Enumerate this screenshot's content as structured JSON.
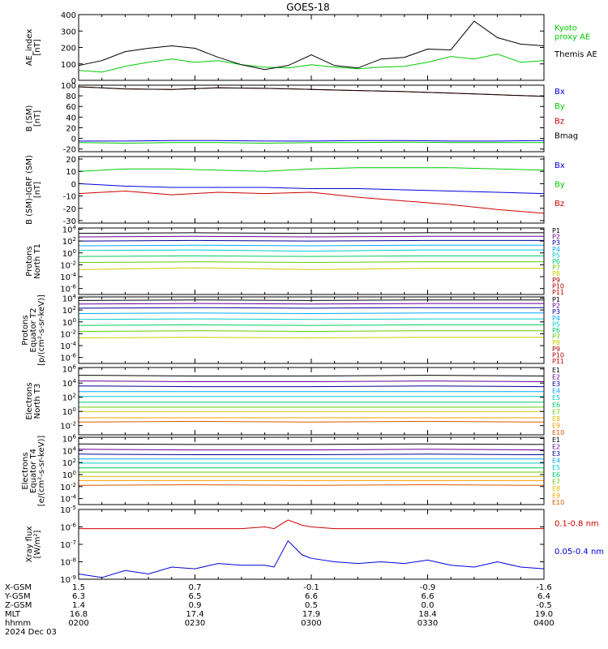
{
  "title": "GOES-18",
  "colors": {
    "black": "#000000",
    "green": "#00cc00",
    "red": "#cc0000",
    "blue": "#0000dd",
    "darkblue": "#000099",
    "purple": "#660099",
    "cyan": "#00aaff",
    "cyan2": "#00cccc",
    "green2": "#00cc66",
    "lime": "#66cc00",
    "yellow": "#cccc00",
    "gold": "#ddbb00",
    "orange": "#ff9900",
    "orangered": "#dd5500",
    "darkred": "#aa0000"
  },
  "chart_data": [
    {
      "type": "line",
      "ylabel": [
        "AE_index",
        "[nT]"
      ],
      "ylim": [
        0,
        400
      ],
      "yticks": [
        0,
        100,
        200,
        300,
        400
      ],
      "ytick_labels": [
        "0",
        "100",
        "200",
        "300",
        "400"
      ],
      "x": [
        0.0,
        0.05,
        0.1,
        0.15,
        0.2,
        0.25,
        0.3,
        0.35,
        0.4,
        0.45,
        0.5,
        0.55,
        0.6,
        0.65,
        0.7,
        0.75,
        0.8,
        0.85,
        0.9,
        0.95,
        1.0
      ],
      "series": [
        {
          "name": "Kyoto proxy AE",
          "legend": [
            "Kyoto",
            "proxy AE"
          ],
          "color": "green",
          "values": [
            60,
            50,
            85,
            110,
            130,
            110,
            120,
            95,
            80,
            75,
            95,
            80,
            70,
            80,
            85,
            110,
            145,
            130,
            160,
            110,
            120
          ]
        },
        {
          "name": "Themis AE",
          "legend": [
            "Themis AE"
          ],
          "color": "black",
          "values": [
            90,
            120,
            175,
            195,
            210,
            195,
            140,
            95,
            65,
            90,
            155,
            90,
            75,
            130,
            140,
            190,
            185,
            360,
            260,
            220,
            210
          ]
        }
      ]
    },
    {
      "type": "line",
      "ylabel": [
        "B (SM)",
        "[nT]"
      ],
      "ylim": [
        -25,
        100
      ],
      "yticks": [
        -20,
        0,
        20,
        40,
        60,
        80,
        100
      ],
      "ytick_labels": [
        "-20",
        "0",
        "20",
        "40",
        "60",
        "80",
        "100"
      ],
      "x": [
        0.0,
        0.1,
        0.2,
        0.3,
        0.4,
        0.5,
        0.6,
        0.7,
        0.8,
        0.9,
        1.0
      ],
      "series": [
        {
          "name": "Bx",
          "legend": [
            "Bx"
          ],
          "color": "blue",
          "values": [
            -5,
            -5,
            -4,
            -4,
            -5,
            -5,
            -4,
            -4,
            -5,
            -5,
            -4
          ]
        },
        {
          "name": "By",
          "legend": [
            "By"
          ],
          "color": "green",
          "values": [
            -8,
            -9,
            -8,
            -8,
            -9,
            -8,
            -8,
            -7,
            -8,
            -8,
            -8
          ]
        },
        {
          "name": "Bz",
          "legend": [
            "Bz"
          ],
          "color": "red",
          "values": [
            97,
            93,
            92,
            95,
            94,
            92,
            90,
            88,
            85,
            82,
            79
          ]
        },
        {
          "name": "Bmag",
          "legend": [
            "Bmag"
          ],
          "color": "black",
          "values": [
            97,
            93,
            92,
            95,
            94,
            92,
            90,
            88,
            85,
            82,
            79
          ]
        }
      ]
    },
    {
      "type": "line",
      "ylabel": [
        "B (SM)-IGRF (SM)",
        "[nT]"
      ],
      "ylim": [
        -32,
        22
      ],
      "yticks": [
        -30,
        -20,
        -10,
        0,
        10,
        20
      ],
      "ytick_labels": [
        "-30",
        "-20",
        "-10",
        "0",
        "10",
        "20"
      ],
      "x": [
        0.0,
        0.1,
        0.2,
        0.3,
        0.4,
        0.5,
        0.6,
        0.7,
        0.8,
        0.9,
        1.0
      ],
      "series": [
        {
          "name": "Bx",
          "legend": [
            "Bx"
          ],
          "color": "blue",
          "values": [
            0,
            -2,
            -3,
            -3,
            -3,
            -4,
            -4,
            -5,
            -6,
            -7,
            -8
          ]
        },
        {
          "name": "By",
          "legend": [
            "By"
          ],
          "color": "green",
          "values": [
            10,
            12,
            12,
            11,
            10,
            12,
            13,
            13,
            13,
            12,
            11
          ]
        },
        {
          "name": "Bz",
          "legend": [
            "Bz"
          ],
          "color": "red",
          "values": [
            -8,
            -6,
            -9,
            -7,
            -8,
            -7,
            -11,
            -14,
            -17,
            -21,
            -24
          ]
        }
      ]
    },
    {
      "type": "line",
      "yscale": "log",
      "ylabel": [
        "Protons",
        "North T1"
      ],
      "ylim": [
        -7,
        4.2
      ],
      "yticks": [
        4,
        2,
        0,
        -2,
        -4,
        -6
      ],
      "ytick_labels": [
        "10^4",
        "10^2",
        "10^0",
        "10^-2",
        "10^-4",
        "10^-6"
      ],
      "channel_labels": [
        "P1",
        "P2",
        "P3",
        "P4",
        "P5",
        "P6",
        "P7",
        "P8",
        "P9",
        "P10",
        "P11"
      ],
      "x": [
        0.0,
        0.25,
        0.5,
        0.75,
        1.0
      ],
      "series": [
        {
          "name": "P1",
          "color": "black",
          "values": [
            3.3,
            3.4,
            3.3,
            3.4,
            3.4
          ]
        },
        {
          "name": "P2",
          "color": "purple",
          "values": [
            2.7,
            2.8,
            2.7,
            2.8,
            2.8
          ]
        },
        {
          "name": "P3",
          "color": "darkblue",
          "values": [
            2.0,
            2.1,
            2.0,
            2.1,
            2.1
          ]
        },
        {
          "name": "P4",
          "color": "cyan",
          "values": [
            1.2,
            1.3,
            1.2,
            1.3,
            1.3
          ]
        },
        {
          "name": "P5",
          "color": "cyan2",
          "values": [
            0.4,
            0.5,
            0.3,
            0.5,
            0.5
          ]
        },
        {
          "name": "P6",
          "color": "green2",
          "values": [
            -0.6,
            -0.5,
            -0.6,
            -0.5,
            -0.5
          ]
        },
        {
          "name": "P7",
          "color": "lime",
          "values": [
            -1.6,
            -1.5,
            -1.6,
            -1.5,
            -1.5
          ]
        },
        {
          "name": "P8",
          "color": "yellow",
          "values": [
            -2.8,
            -2.5,
            -2.8,
            -2.6,
            -2.6
          ]
        }
      ]
    },
    {
      "type": "line",
      "yscale": "log",
      "ylabel": [
        "Protons",
        "Equator T2",
        "[p/(cm²-s-sr-keV)]"
      ],
      "ylim": [
        -7,
        4.2
      ],
      "yticks": [
        4,
        2,
        0,
        -2,
        -4,
        -6
      ],
      "ytick_labels": [
        "10^4",
        "10^2",
        "10^0",
        "10^-2",
        "10^-4",
        "10^-6"
      ],
      "channel_labels": [
        "P1",
        "P2",
        "P3",
        "P4",
        "P5",
        "P6",
        "P7",
        "P8",
        "P9",
        "P10",
        "P11"
      ],
      "x": [
        0.0,
        0.25,
        0.5,
        0.75,
        1.0
      ],
      "series": [
        {
          "name": "P1",
          "color": "black",
          "values": [
            3.6,
            3.7,
            3.6,
            3.7,
            3.7
          ]
        },
        {
          "name": "P2",
          "color": "purple",
          "values": [
            3.0,
            3.1,
            3.0,
            3.1,
            3.1
          ]
        },
        {
          "name": "P3",
          "color": "darkblue",
          "values": [
            2.3,
            2.4,
            2.3,
            2.4,
            2.4
          ]
        },
        {
          "name": "P4",
          "color": "cyan",
          "values": [
            1.4,
            1.5,
            1.4,
            1.5,
            1.5
          ]
        },
        {
          "name": "P5",
          "color": "cyan2",
          "values": [
            0.4,
            0.5,
            0.4,
            0.5,
            0.5
          ]
        },
        {
          "name": "P6",
          "color": "green2",
          "values": [
            -0.6,
            -0.5,
            -0.6,
            -0.5,
            -0.5
          ]
        },
        {
          "name": "P7",
          "color": "lime",
          "values": [
            -1.6,
            -1.5,
            -1.6,
            -1.5,
            -1.5
          ]
        },
        {
          "name": "P8",
          "color": "yellow",
          "values": [
            -2.7,
            -2.6,
            -2.7,
            -2.6,
            -2.6
          ]
        }
      ]
    },
    {
      "type": "line",
      "yscale": "log",
      "ylabel": [
        "Electrons",
        "North T3"
      ],
      "ylim": [
        -3.3,
        6.2
      ],
      "yticks": [
        6,
        4,
        2,
        0,
        -2
      ],
      "ytick_labels": [
        "10^6",
        "10^4",
        "10^2",
        "10^0",
        "10^-2"
      ],
      "channel_labels": [
        "E1",
        "E2",
        "E3",
        "E4",
        "E5",
        "E6",
        "E7",
        "E8",
        "E9",
        "E10"
      ],
      "x": [
        0.0,
        0.25,
        0.5,
        0.75,
        1.0
      ],
      "series": [
        {
          "name": "E1",
          "color": "black",
          "values": [
            5.1,
            5.0,
            5.0,
            5.1,
            5.0
          ]
        },
        {
          "name": "E2",
          "color": "purple",
          "values": [
            4.3,
            4.2,
            4.2,
            4.3,
            4.2
          ]
        },
        {
          "name": "E3",
          "color": "darkblue",
          "values": [
            3.6,
            3.5,
            3.5,
            3.6,
            3.5
          ]
        },
        {
          "name": "E4",
          "color": "cyan",
          "values": [
            2.8,
            2.8,
            2.8,
            2.8,
            2.8
          ]
        },
        {
          "name": "E5",
          "color": "cyan2",
          "values": [
            2.1,
            2.1,
            2.1,
            2.1,
            2.1
          ]
        },
        {
          "name": "E6",
          "color": "green2",
          "values": [
            1.3,
            1.3,
            1.3,
            1.3,
            1.3
          ]
        },
        {
          "name": "E7",
          "color": "lime",
          "values": [
            0.6,
            0.6,
            0.6,
            0.6,
            0.6
          ]
        },
        {
          "name": "E8",
          "color": "gold",
          "values": [
            0.0,
            0.0,
            0.0,
            0.0,
            0.0
          ]
        },
        {
          "name": "E9",
          "color": "orange",
          "values": [
            -0.9,
            -0.9,
            -0.9,
            -0.9,
            -0.9
          ]
        },
        {
          "name": "E10",
          "color": "orangered",
          "values": [
            -1.5,
            -1.4,
            -1.5,
            -1.4,
            -1.5
          ]
        }
      ]
    },
    {
      "type": "line",
      "yscale": "log",
      "ylabel": [
        "Electrons",
        "Equator T4",
        "[e/(cm²-s-sr-keV)]"
      ],
      "ylim": [
        -5,
        6.2
      ],
      "yticks": [
        6,
        4,
        2,
        0,
        -2,
        -4
      ],
      "ytick_labels": [
        "10^6",
        "10^4",
        "10^2",
        "10^0",
        "10^-2",
        "10^-4"
      ],
      "channel_labels": [
        "E1",
        "E2",
        "E3",
        "E4",
        "E5",
        "E6",
        "E7",
        "E8",
        "E9",
        "E10"
      ],
      "x": [
        0.0,
        0.25,
        0.5,
        0.75,
        1.0
      ],
      "series": [
        {
          "name": "E1",
          "color": "black",
          "values": [
            5.1,
            5.0,
            5.0,
            5.1,
            5.0
          ]
        },
        {
          "name": "E2",
          "color": "purple",
          "values": [
            4.2,
            4.1,
            4.1,
            4.2,
            4.1
          ]
        },
        {
          "name": "E3",
          "color": "darkblue",
          "values": [
            3.4,
            3.3,
            3.3,
            3.4,
            3.3
          ]
        },
        {
          "name": "E4",
          "color": "cyan",
          "values": [
            2.6,
            2.6,
            2.6,
            2.6,
            2.6
          ]
        },
        {
          "name": "E5",
          "color": "cyan2",
          "values": [
            1.9,
            1.9,
            1.9,
            1.9,
            1.9
          ]
        },
        {
          "name": "E6",
          "color": "green2",
          "values": [
            1.1,
            1.1,
            1.1,
            1.1,
            1.1
          ]
        },
        {
          "name": "E7",
          "color": "lime",
          "values": [
            0.4,
            0.4,
            0.4,
            0.4,
            0.4
          ]
        },
        {
          "name": "E8",
          "color": "gold",
          "values": [
            -0.3,
            -0.3,
            -0.3,
            -0.3,
            -0.3
          ]
        },
        {
          "name": "E9",
          "color": "orange",
          "values": [
            -1.0,
            -1.0,
            -1.0,
            -1.0,
            -1.0
          ]
        },
        {
          "name": "E10",
          "color": "orangered",
          "values": [
            -1.8,
            -1.7,
            -1.8,
            -1.7,
            -1.8
          ]
        }
      ]
    },
    {
      "type": "line",
      "yscale": "log",
      "ylabel": [
        "Xray flux",
        "[W/m²]"
      ],
      "ylim": [
        -9,
        -5
      ],
      "yticks": [
        -5,
        -6,
        -7,
        -8,
        -9
      ],
      "ytick_labels": [
        "10^-5",
        "10^-6",
        "10^-7",
        "10^-8",
        "10^-9"
      ],
      "x": [
        0.0,
        0.05,
        0.1,
        0.15,
        0.2,
        0.25,
        0.3,
        0.35,
        0.4,
        0.42,
        0.45,
        0.48,
        0.5,
        0.55,
        0.6,
        0.65,
        0.7,
        0.75,
        0.8,
        0.85,
        0.9,
        0.95,
        1.0
      ],
      "series": [
        {
          "name": "0.1-0.8 nm",
          "legend": [
            "0.1-0.8 nm"
          ],
          "color": "red",
          "values": [
            -6.1,
            -6.1,
            -6.1,
            -6.1,
            -6.1,
            -6.1,
            -6.1,
            -6.1,
            -6.0,
            -6.1,
            -5.6,
            -5.9,
            -6.0,
            -6.1,
            -6.1,
            -6.1,
            -6.1,
            -6.1,
            -6.1,
            -6.1,
            -6.1,
            -6.1,
            -6.1
          ]
        },
        {
          "name": "0.05-0.4 nm",
          "legend": [
            "0.05-0.4 nm"
          ],
          "color": "blue",
          "values": [
            -8.7,
            -8.9,
            -8.5,
            -8.7,
            -8.3,
            -8.4,
            -8.1,
            -8.2,
            -8.2,
            -8.3,
            -6.8,
            -7.6,
            -7.8,
            -8.0,
            -8.1,
            -8.0,
            -8.1,
            -7.9,
            -8.2,
            -8.3,
            -8.0,
            -8.3,
            -8.4
          ]
        }
      ]
    }
  ],
  "x_axis": {
    "tick_fracs": [
      0.0,
      0.25,
      0.5,
      0.75,
      1.0
    ],
    "row_labels": [
      "X-GSM",
      "Y-GSM",
      "Z-GSM",
      "MLT",
      "hhmm",
      "2024 Dec 03"
    ],
    "rows": [
      [
        "1.5",
        "0.7",
        "-0.1",
        "-0.9",
        "-1.6"
      ],
      [
        "6.3",
        "6.5",
        "6.6",
        "6.6",
        "6.4"
      ],
      [
        "1.4",
        "0.9",
        "0.5",
        "0.0",
        "-0.5"
      ],
      [
        "16.8",
        "17.4",
        "17.9",
        "18.4",
        "19.0"
      ],
      [
        "0200",
        "0230",
        "0300",
        "0330",
        "0400"
      ]
    ]
  }
}
